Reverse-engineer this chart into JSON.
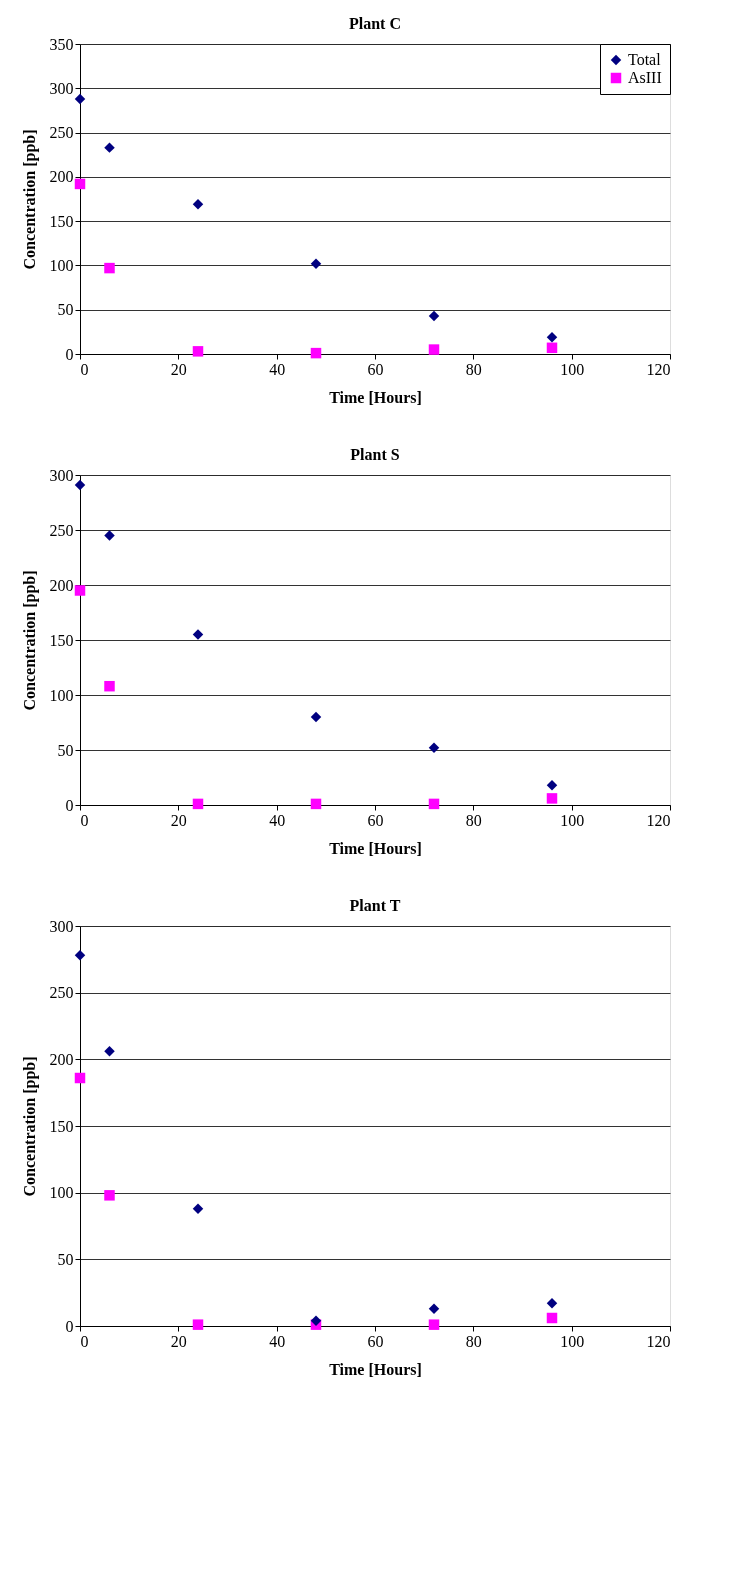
{
  "chart_data": [
    {
      "type": "scatter",
      "title": "Plant C",
      "xlabel": "Time [Hours]",
      "ylabel": "Concentration [ppb]",
      "x": [
        0,
        6,
        24,
        48,
        72,
        96
      ],
      "xlim": [
        0,
        120
      ],
      "xticks": [
        0,
        20,
        40,
        60,
        80,
        100,
        120
      ],
      "ylim": [
        0,
        350
      ],
      "yticks": [
        0,
        50,
        100,
        150,
        200,
        250,
        300,
        350
      ],
      "grid": "y",
      "legend": "top right",
      "series": [
        {
          "name": "Total",
          "color": "#000080",
          "marker": "diamond",
          "values": [
            288,
            233,
            169,
            102,
            43,
            19
          ]
        },
        {
          "name": "AsIII",
          "color": "#ff00ff",
          "marker": "square",
          "values": [
            192,
            97,
            3,
            1,
            5,
            7
          ]
        }
      ]
    },
    {
      "type": "scatter",
      "title": "Plant S",
      "xlabel": "Time [Hours]",
      "ylabel": "Concentration [ppb]",
      "x": [
        0,
        6,
        24,
        48,
        72,
        96
      ],
      "xlim": [
        0,
        120
      ],
      "xticks": [
        0,
        20,
        40,
        60,
        80,
        100,
        120
      ],
      "ylim": [
        0,
        300
      ],
      "yticks": [
        0,
        50,
        100,
        150,
        200,
        250,
        300
      ],
      "grid": "y",
      "legend": "top right",
      "series": [
        {
          "name": "Total",
          "color": "#000080",
          "marker": "diamond",
          "values": [
            291,
            245,
            155,
            80,
            52,
            18
          ]
        },
        {
          "name": "AsIII",
          "color": "#ff00ff",
          "marker": "square",
          "values": [
            195,
            108,
            1,
            1,
            1,
            6
          ]
        }
      ]
    },
    {
      "type": "scatter",
      "title": "Plant T",
      "xlabel": "Time [Hours]",
      "ylabel": "Concentration [ppb]",
      "x": [
        0,
        6,
        24,
        48,
        72,
        96
      ],
      "xlim": [
        0,
        120
      ],
      "xticks": [
        0,
        20,
        40,
        60,
        80,
        100,
        120
      ],
      "ylim": [
        0,
        300
      ],
      "yticks": [
        0,
        50,
        100,
        150,
        200,
        250,
        300
      ],
      "grid": "y",
      "legend": "top right",
      "series": [
        {
          "name": "Total",
          "color": "#000080",
          "marker": "diamond",
          "values": [
            278,
            206,
            88,
            4,
            13,
            17
          ]
        },
        {
          "name": "AsIII",
          "color": "#ff00ff",
          "marker": "square",
          "values": [
            186,
            98,
            1,
            1,
            1,
            6
          ]
        }
      ]
    }
  ]
}
